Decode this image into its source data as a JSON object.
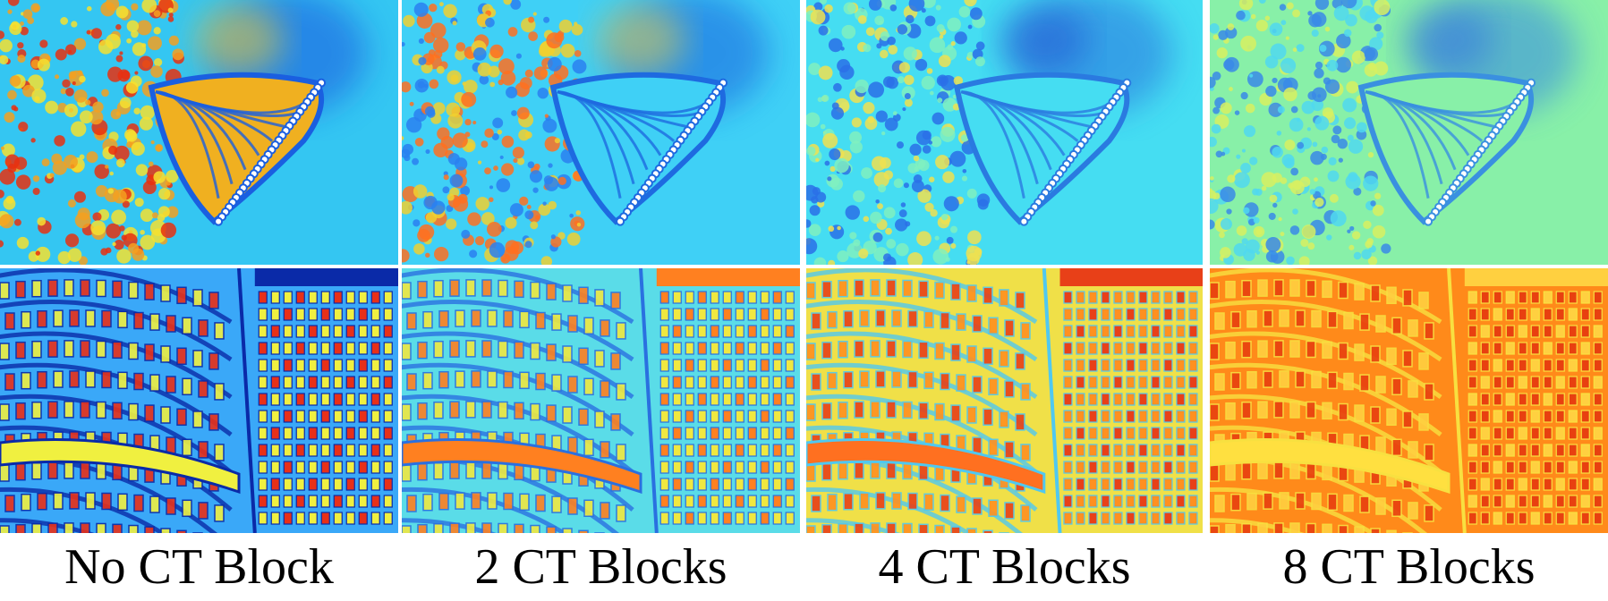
{
  "captions": [
    "No CT Block",
    "2 CT Blocks",
    "4 CT Blocks",
    "8 CT Blocks"
  ]
}
